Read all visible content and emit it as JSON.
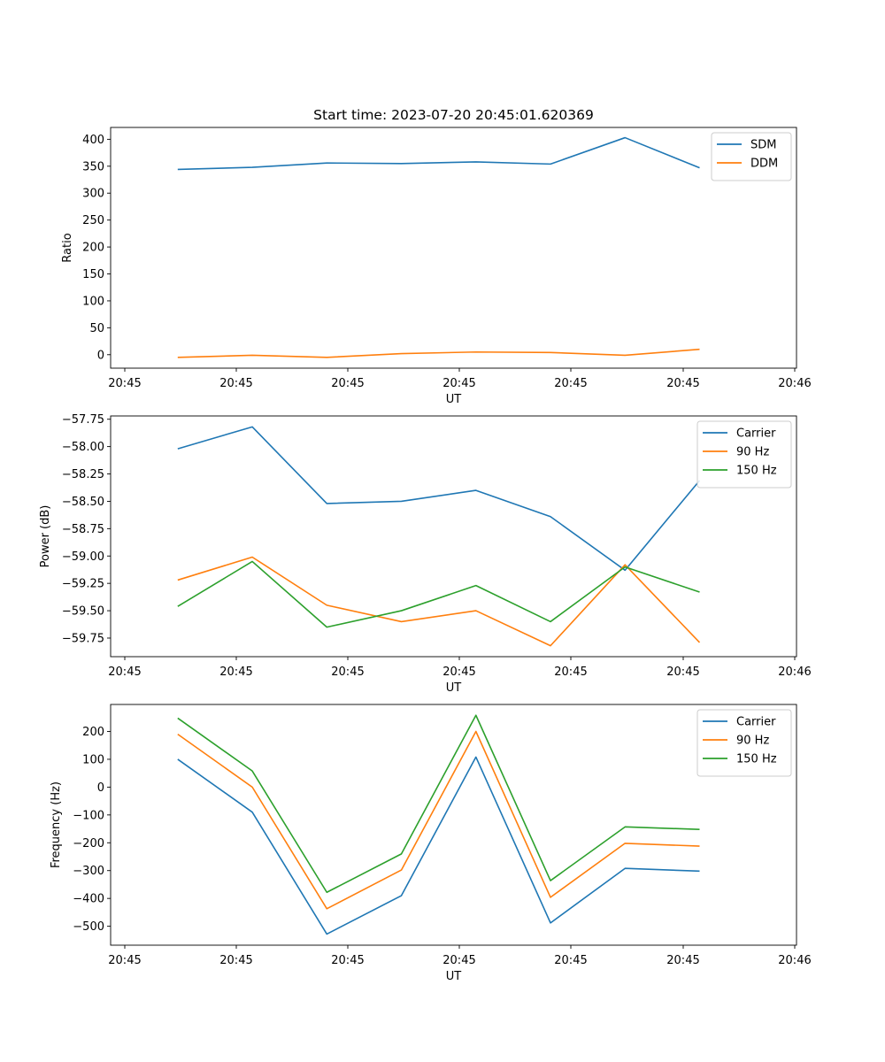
{
  "chart_data": [
    {
      "type": "line",
      "title": "Start time: 2023-07-20 20:45:01.620369",
      "xlabel": "UT",
      "ylabel": "Ratio",
      "x_tick_labels": [
        "20:45",
        "20:45",
        "20:45",
        "20:45",
        "20:45",
        "20:45",
        "20:46"
      ],
      "xlim": [
        -0.9,
        8.3
      ],
      "ylim": [
        -25,
        422
      ],
      "y_ticks": [
        0,
        50,
        100,
        150,
        200,
        250,
        300,
        350,
        400
      ],
      "y_tick_labels": [
        "0",
        "50",
        "100",
        "150",
        "200",
        "250",
        "300",
        "350",
        "400"
      ],
      "legend_position": "top-right",
      "series": [
        {
          "name": "SDM",
          "color": "#1f77b4",
          "x": [
            0,
            1,
            2,
            3,
            4,
            5,
            6,
            7
          ],
          "values": [
            344,
            348,
            356,
            355,
            358,
            354,
            403,
            347
          ]
        },
        {
          "name": "DDM",
          "color": "#ff7f0e",
          "x": [
            0,
            1,
            2,
            3,
            4,
            5,
            6,
            7
          ],
          "values": [
            -5,
            -1,
            -5,
            2,
            5,
            4,
            -1,
            10
          ]
        }
      ]
    },
    {
      "type": "line",
      "title": "",
      "xlabel": "UT",
      "ylabel": "Power (dB)",
      "x_tick_labels": [
        "20:45",
        "20:45",
        "20:45",
        "20:45",
        "20:45",
        "20:45",
        "20:46"
      ],
      "xlim": [
        -0.9,
        8.3
      ],
      "ylim": [
        -59.92,
        -57.72
      ],
      "y_ticks": [
        -59.75,
        -59.5,
        -59.25,
        -59.0,
        -58.75,
        -58.5,
        -58.25,
        -58.0,
        -57.75
      ],
      "y_tick_labels": [
        "−59.75",
        "−59.50",
        "−59.25",
        "−59.00",
        "−58.75",
        "−58.50",
        "−58.25",
        "−58.00",
        "−57.75"
      ],
      "legend_position": "top-right",
      "series": [
        {
          "name": "Carrier",
          "color": "#1f77b4",
          "x": [
            0,
            1,
            2,
            3,
            4,
            5,
            6,
            7
          ],
          "values": [
            -58.02,
            -57.82,
            -58.52,
            -58.5,
            -58.4,
            -58.64,
            -59.13,
            -58.31
          ]
        },
        {
          "name": "90 Hz",
          "color": "#ff7f0e",
          "x": [
            0,
            1,
            2,
            3,
            4,
            5,
            6,
            7
          ],
          "values": [
            -59.22,
            -59.01,
            -59.45,
            -59.6,
            -59.5,
            -59.82,
            -59.08,
            -59.79
          ]
        },
        {
          "name": "150 Hz",
          "color": "#2ca02c",
          "x": [
            0,
            1,
            2,
            3,
            4,
            5,
            6,
            7
          ],
          "values": [
            -59.46,
            -59.05,
            -59.65,
            -59.5,
            -59.27,
            -59.6,
            -59.1,
            -59.33
          ]
        }
      ]
    },
    {
      "type": "line",
      "title": "",
      "xlabel": "UT",
      "ylabel": "Frequency (Hz)",
      "x_tick_labels": [
        "20:45",
        "20:45",
        "20:45",
        "20:45",
        "20:45",
        "20:45",
        "20:46"
      ],
      "xlim": [
        -0.9,
        8.3
      ],
      "ylim": [
        -568,
        297
      ],
      "y_ticks": [
        -500,
        -400,
        -300,
        -200,
        -100,
        0,
        100,
        200
      ],
      "y_tick_labels": [
        "−500",
        "−400",
        "−300",
        "−200",
        "−100",
        "0",
        "100",
        "200"
      ],
      "legend_position": "top-right",
      "series": [
        {
          "name": "Carrier",
          "color": "#1f77b4",
          "x": [
            0,
            1,
            2,
            3,
            4,
            5,
            6,
            7
          ],
          "values": [
            100,
            -90,
            -528,
            -390,
            108,
            -488,
            -292,
            -302
          ]
        },
        {
          "name": "90 Hz",
          "color": "#ff7f0e",
          "x": [
            0,
            1,
            2,
            3,
            4,
            5,
            6,
            7
          ],
          "values": [
            190,
            0,
            -437,
            -298,
            200,
            -396,
            -202,
            -212
          ]
        },
        {
          "name": "150 Hz",
          "color": "#2ca02c",
          "x": [
            0,
            1,
            2,
            3,
            4,
            5,
            6,
            7
          ],
          "values": [
            248,
            58,
            -378,
            -240,
            258,
            -336,
            -143,
            -152
          ]
        }
      ]
    }
  ]
}
